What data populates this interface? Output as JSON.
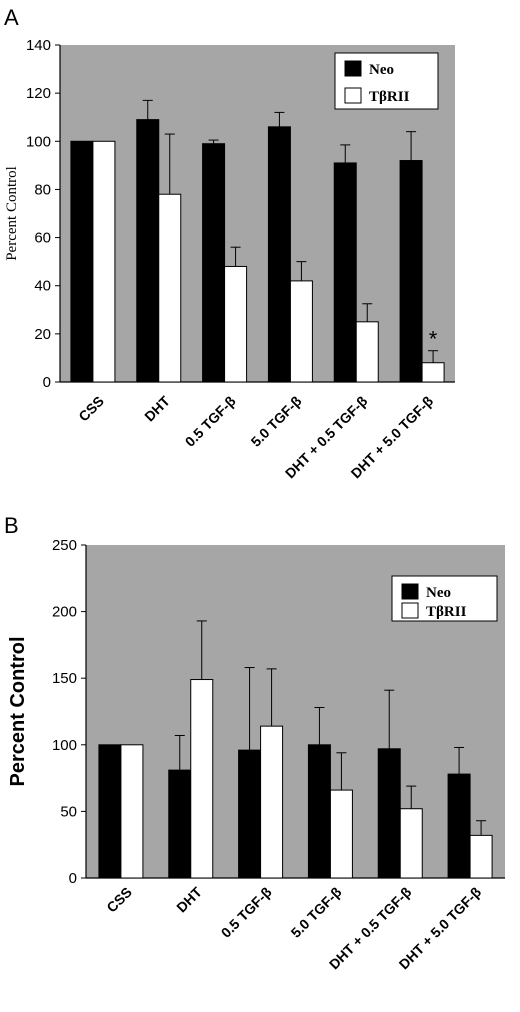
{
  "chart_data": [
    {
      "panel": "A",
      "type": "bar",
      "categories": [
        "CSS",
        "DHT",
        "0.5 TGF-β",
        "5.0 TGF-β",
        "DHT + 0.5 TGF-β",
        "DHT + 5.0 TGF-β"
      ],
      "series": [
        {
          "name": "Neo",
          "color": "#000000",
          "values": [
            100,
            109,
            99,
            106,
            91,
            92
          ],
          "errors": [
            0,
            8,
            1.5,
            6,
            7.5,
            12
          ]
        },
        {
          "name": "TβRII",
          "color": "#ffffff",
          "values": [
            100,
            78,
            48,
            42,
            25,
            8
          ],
          "errors": [
            0,
            25,
            8,
            8,
            7.5,
            5
          ]
        }
      ],
      "ylabel": "Percent Control",
      "xlabel": "",
      "ylim": [
        0,
        140
      ],
      "yticks": [
        0,
        20,
        40,
        60,
        80,
        100,
        120,
        140
      ],
      "background": "#a6a6a6",
      "legend_position": "top-right",
      "annotation": {
        "text": "*",
        "category": "DHT + 5.0 TGF-β",
        "series": "TβRII"
      }
    },
    {
      "panel": "B",
      "type": "bar",
      "categories": [
        "CSS",
        "DHT",
        "0.5 TGF-β",
        "5.0 TGF-β",
        "DHT + 0.5 TGF-β",
        "DHT + 5.0 TGF-β"
      ],
      "series": [
        {
          "name": "Neo",
          "color": "#000000",
          "values": [
            100,
            81,
            96,
            100,
            97,
            78
          ],
          "errors": [
            0,
            26,
            62,
            28,
            44,
            20
          ]
        },
        {
          "name": "TβRII",
          "color": "#ffffff",
          "values": [
            100,
            149,
            114,
            66,
            52,
            32
          ],
          "errors": [
            0,
            44,
            43,
            28,
            17,
            11
          ]
        }
      ],
      "ylabel": "Percent Control",
      "xlabel": "",
      "ylim": [
        0,
        250
      ],
      "yticks": [
        0,
        50,
        100,
        150,
        200,
        250
      ],
      "background": "#a6a6a6",
      "legend_position": "top-right"
    }
  ]
}
